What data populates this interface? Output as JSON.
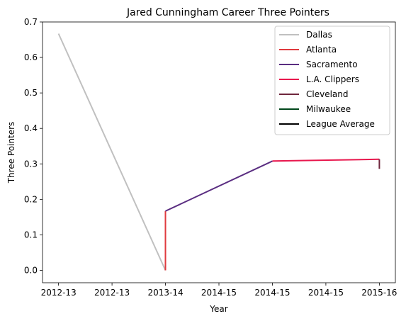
{
  "chart_data": {
    "type": "line",
    "title": "Jared Cunningham Career Three Pointers",
    "xlabel": "Year",
    "ylabel": "Three Pointers",
    "x_tick_labels": [
      "2012-13",
      "2012-13",
      "2013-14",
      "2014-15",
      "2014-15",
      "2014-15",
      "2015-16"
    ],
    "x_tick_positions": [
      0,
      0.5,
      1,
      1.5,
      2,
      2.5,
      3
    ],
    "xlim": [
      -0.15,
      3.15
    ],
    "ylim": [
      -0.035,
      0.7
    ],
    "y_ticks": [
      0.0,
      0.1,
      0.2,
      0.3,
      0.4,
      0.5,
      0.6,
      0.7
    ],
    "y_tick_labels": [
      "0.0",
      "0.1",
      "0.2",
      "0.3",
      "0.4",
      "0.5",
      "0.6",
      "0.7"
    ],
    "legend_position": "top-right",
    "grid": false,
    "series": [
      {
        "name": "Dallas",
        "color": "#c0c0c0",
        "x": [
          0,
          1
        ],
        "y": [
          0.667,
          0.0
        ]
      },
      {
        "name": "Atlanta",
        "color": "#e03a3e",
        "x": [
          1,
          1
        ],
        "y": [
          0.0,
          0.167
        ]
      },
      {
        "name": "Sacramento",
        "color": "#5a2d81",
        "x": [
          1,
          2
        ],
        "y": [
          0.167,
          0.308
        ]
      },
      {
        "name": "L.A. Clippers",
        "color": "#e8174d",
        "x": [
          2,
          3
        ],
        "y": [
          0.308,
          0.313
        ]
      },
      {
        "name": "Cleveland",
        "color": "#6f263d",
        "x": [
          3,
          3
        ],
        "y": [
          0.313,
          0.286
        ]
      },
      {
        "name": "Milwaukee",
        "color": "#00471b",
        "x": [],
        "y": []
      },
      {
        "name": "League Average",
        "color": "#000000",
        "x": [],
        "y": []
      }
    ]
  }
}
